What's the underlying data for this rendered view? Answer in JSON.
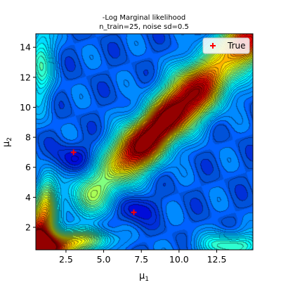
{
  "chart_data": {
    "type": "heatmap",
    "title": "-Log Marginal likelihood",
    "subtitle": "n_train=25, noise sd=0.5",
    "xlabel_base": "μ",
    "xlabel_sub": "1",
    "ylabel_base": "μ",
    "ylabel_sub": "2",
    "xlim": [
      0.5,
      14.9
    ],
    "ylim": [
      0.5,
      14.9
    ],
    "xticks": [
      2.5,
      5.0,
      7.5,
      10.0,
      12.5
    ],
    "xtick_labels": [
      "2.5",
      "5.0",
      "7.5",
      "10.0",
      "12.5"
    ],
    "yticks": [
      2,
      4,
      6,
      8,
      10,
      12,
      14
    ],
    "ytick_labels": [
      "2",
      "4",
      "6",
      "8",
      "10",
      "12",
      "14"
    ],
    "colormap": "jet",
    "contour_lines": true,
    "legend": {
      "entries": [
        "True"
      ],
      "placement": "top-right",
      "marker": "+",
      "color": "#ff0000"
    },
    "true_points": [
      {
        "x": 3.0,
        "y": 7.0
      },
      {
        "x": 7.0,
        "y": 3.0
      }
    ],
    "surface_features": [
      {
        "x": 7.3,
        "y": 7.3,
        "level": "high",
        "note": "dark-red ridge"
      },
      {
        "x": 11.0,
        "y": 11.0,
        "level": "high"
      },
      {
        "x": 14.5,
        "y": 14.5,
        "level": "high"
      },
      {
        "x": 0.8,
        "y": 1.5,
        "level": "high"
      },
      {
        "x": 1.5,
        "y": 0.8,
        "level": "high"
      },
      {
        "x": 3.0,
        "y": 7.0,
        "level": "low"
      },
      {
        "x": 7.0,
        "y": 3.0,
        "level": "low"
      }
    ]
  }
}
